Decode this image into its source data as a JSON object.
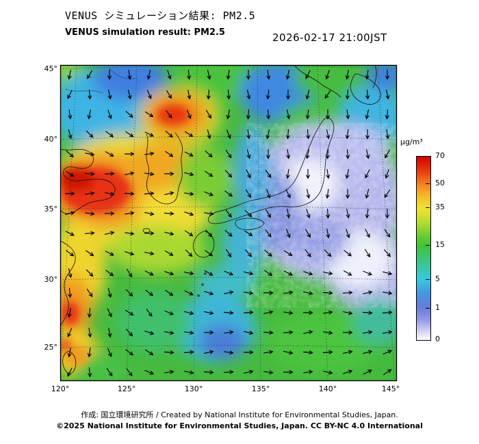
{
  "header": {
    "title_jp": "VENUS シミュレーション結果: PM2.5",
    "title_en": "VENUS simulation result: PM2.5",
    "datetime": "2026-02-17 21:00JST"
  },
  "map": {
    "lat_ticks": [
      {
        "label": "45°"
      },
      {
        "label": "40°"
      },
      {
        "label": "35°"
      },
      {
        "label": "30°"
      },
      {
        "label": "25°"
      }
    ],
    "lon_ticks": [
      {
        "label": "120°"
      },
      {
        "label": "125°"
      },
      {
        "label": "130°"
      },
      {
        "label": "135°"
      },
      {
        "label": "140°"
      },
      {
        "label": "145°"
      }
    ]
  },
  "colorbar": {
    "unit": "µg/m³",
    "ticks": [
      {
        "label": "70"
      },
      {
        "label": "50"
      },
      {
        "label": "35"
      },
      {
        "label": "15"
      },
      {
        "label": "5"
      },
      {
        "label": "1"
      },
      {
        "label": "0"
      }
    ],
    "stops": [
      {
        "value": 70,
        "color": "#d40000"
      },
      {
        "value": 50,
        "color": "#f58020"
      },
      {
        "value": 35,
        "color": "#f2e232"
      },
      {
        "value": 15,
        "color": "#40c23a"
      },
      {
        "value": 5,
        "color": "#38c8e2"
      },
      {
        "value": 1,
        "color": "#6e7ed8"
      },
      {
        "value": 0,
        "color": "#ffffff"
      }
    ]
  },
  "wind": {
    "rows": [
      "55444344444455544",
      "54433334444455444",
      "44322233444444444",
      "32211223344444444",
      "21100112334444445",
      "10000011233444455",
      "00000001223344455",
      "00000011223334444",
      "10000112222333333",
      "21111122222222222",
      "32221111111111111",
      "43322111000000000",
      "44322110000000000",
      "5432110000000000f",
      "543210000000000ff",
      "54321000000000fff"
    ]
  },
  "footer": {
    "credit": "作成: 国立環境研究所 / Created by National Institute for Environmental Studies, Japan.",
    "license": "©2025 National Institute for Environmental Studies, Japan. CC BY-NC 4.0 International"
  }
}
